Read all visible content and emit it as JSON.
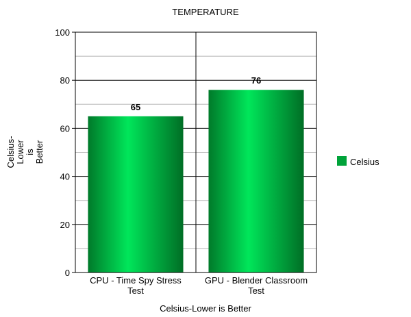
{
  "chart_data": {
    "type": "bar",
    "title": "TEMPERATURE",
    "xlabel": "Celsius-Lower is Better",
    "ylabel_lines": [
      "Celsius-",
      "Lower",
      "is",
      "Better"
    ],
    "categories": [
      [
        "CPU - Time Spy Stress",
        "Test"
      ],
      [
        "GPU - Blender Classroom",
        "Test"
      ]
    ],
    "series": [
      {
        "name": "Celsius",
        "values": [
          65,
          76
        ]
      }
    ],
    "ylim": [
      0,
      100
    ],
    "yticks": [
      "0",
      "20",
      "40",
      "60",
      "80",
      "100"
    ],
    "data_labels": [
      "65",
      "76"
    ],
    "grid": true,
    "legend_position": "right",
    "colors": {
      "bar_dark": "#007a2a",
      "bar_light": "#00e65a",
      "legend": "#00a33a"
    }
  }
}
